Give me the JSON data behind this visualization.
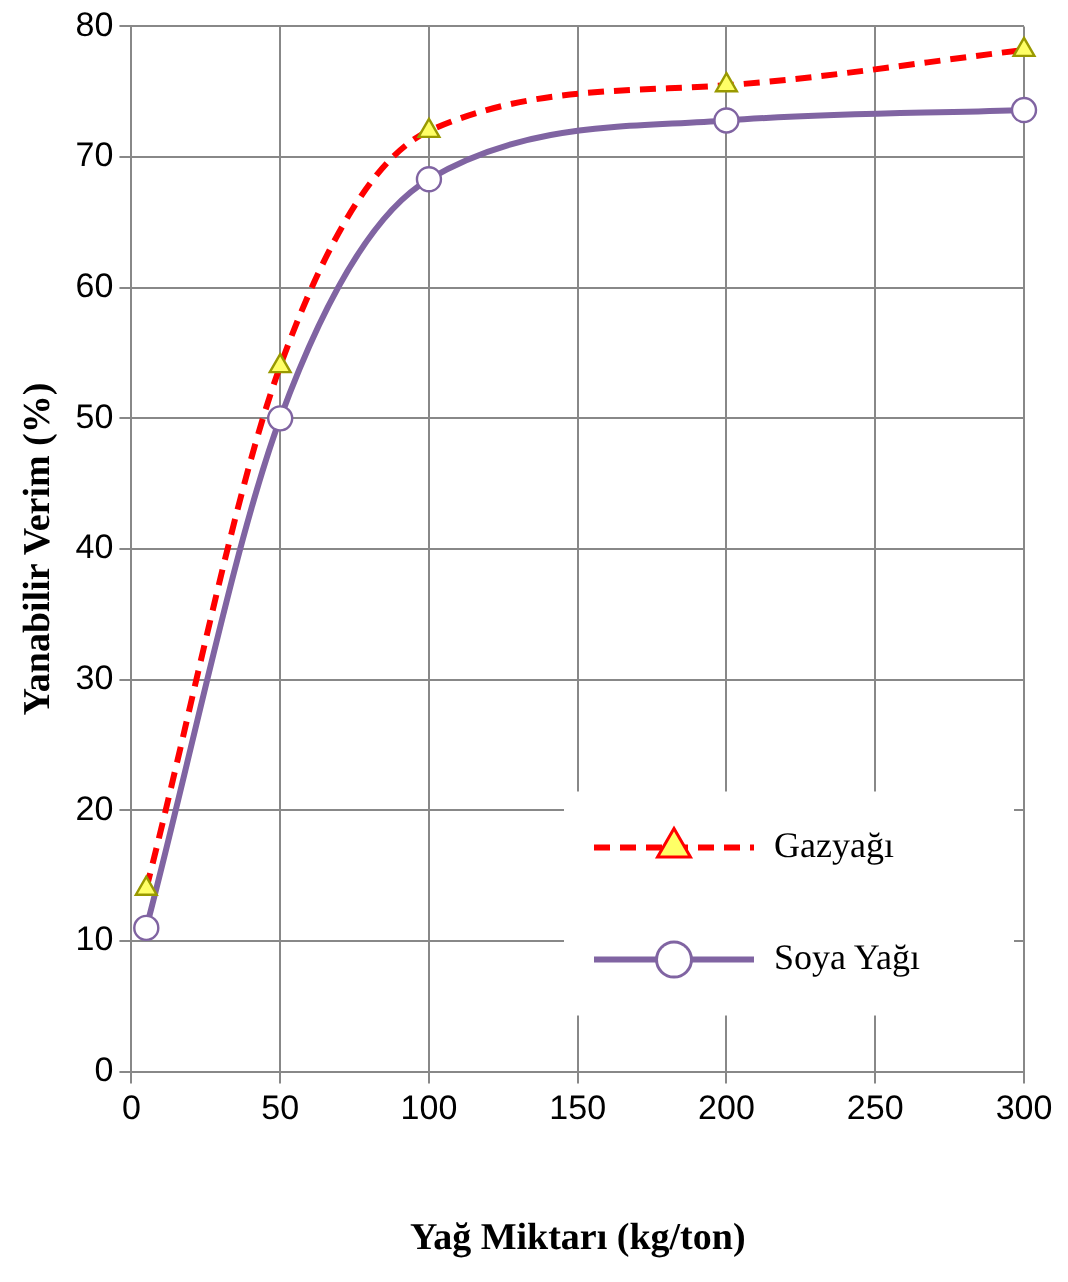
{
  "chart_data": {
    "type": "line",
    "xlabel": "Yağ Miktarı (kg/ton)",
    "ylabel": "Yanabilir Verim (%)",
    "xlim": [
      0,
      300
    ],
    "xticks": [
      0,
      50,
      100,
      150,
      200,
      250,
      300
    ],
    "ylim": [
      0,
      80
    ],
    "yticks": [
      0,
      10,
      20,
      30,
      40,
      50,
      60,
      70,
      80
    ],
    "grid": true,
    "legend": "bottom right",
    "series": [
      {
        "name": "Gazyağı",
        "color": "#ff0000",
        "x": [
          5,
          50,
          100,
          200,
          300
        ],
        "values": [
          14,
          54,
          72,
          75.5,
          78.2
        ],
        "marker": "triangle",
        "line_style": "dashed"
      },
      {
        "name": "Soya Yağı",
        "color": "#8064a2",
        "x": [
          5,
          50,
          100,
          200,
          300
        ],
        "values": [
          11,
          50,
          68.3,
          72.8,
          73.6
        ],
        "marker": "circle",
        "line_style": "solid"
      }
    ]
  }
}
